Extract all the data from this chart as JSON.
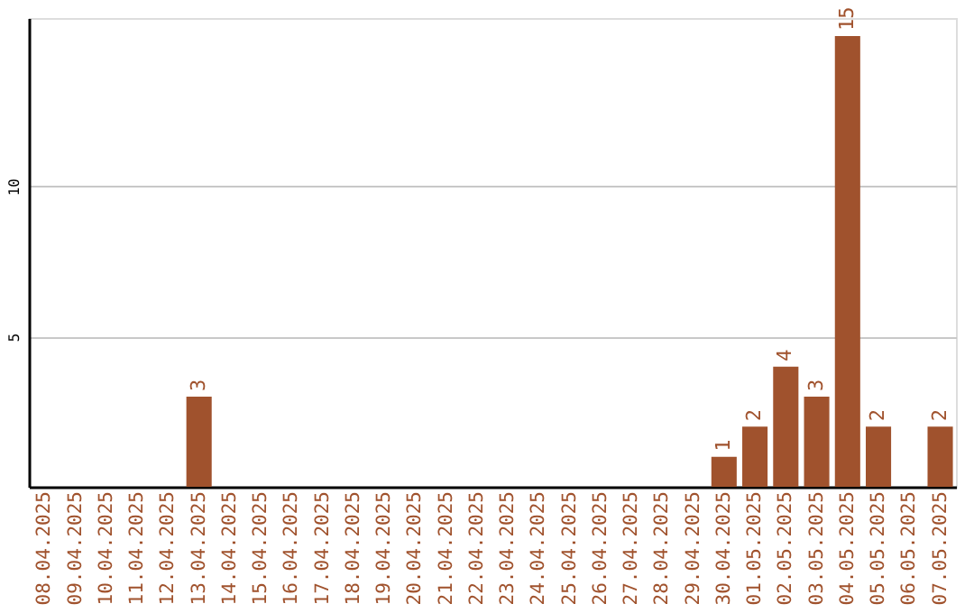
{
  "chart_data": {
    "type": "bar",
    "categories": [
      "08.04.2025",
      "09.04.2025",
      "10.04.2025",
      "11.04.2025",
      "12.04.2025",
      "13.04.2025",
      "14.04.2025",
      "15.04.2025",
      "16.04.2025",
      "17.04.2025",
      "18.04.2025",
      "19.04.2025",
      "20.04.2025",
      "21.04.2025",
      "22.04.2025",
      "23.04.2025",
      "24.04.2025",
      "25.04.2025",
      "26.04.2025",
      "27.04.2025",
      "28.04.2025",
      "29.04.2025",
      "30.04.2025",
      "01.05.2025",
      "02.05.2025",
      "03.05.2025",
      "04.05.2025",
      "05.05.2025",
      "06.05.2025",
      "07.05.2025"
    ],
    "values": [
      0,
      0,
      0,
      0,
      0,
      3,
      0,
      0,
      0,
      0,
      0,
      0,
      0,
      0,
      0,
      0,
      0,
      0,
      0,
      0,
      0,
      0,
      1,
      2,
      4,
      3,
      15,
      2,
      0,
      2
    ],
    "value_labels": [
      null,
      null,
      null,
      null,
      null,
      "3",
      null,
      null,
      null,
      null,
      null,
      null,
      null,
      null,
      null,
      null,
      null,
      null,
      null,
      null,
      null,
      null,
      "1",
      "2",
      "4",
      "3",
      "15",
      "2",
      null,
      "2"
    ],
    "color": "#a0522d",
    "ylim": [
      0,
      15.6
    ],
    "yticks": [
      5,
      10
    ],
    "grid": "y"
  }
}
